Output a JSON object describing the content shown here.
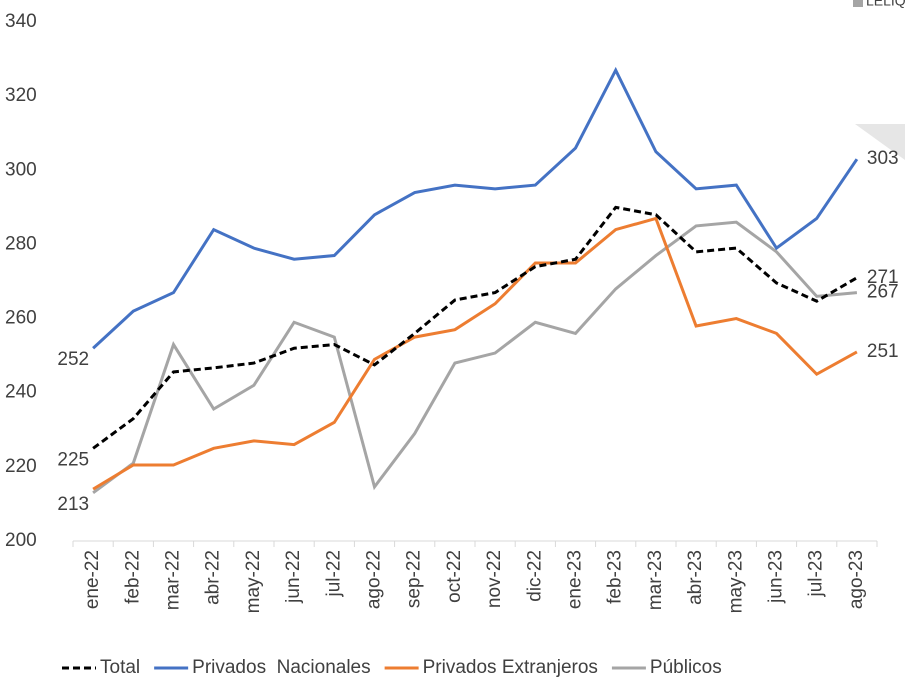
{
  "chart_data": {
    "type": "line",
    "annotations": [
      "LELIQ"
    ],
    "categories": [
      "ene-22",
      "feb-22",
      "mar-22",
      "abr-22",
      "may-22",
      "jun-22",
      "jul-22",
      "ago-22",
      "sep-22",
      "oct-22",
      "nov-22",
      "dic-22",
      "ene-23",
      "feb-23",
      "mar-23",
      "abr-23",
      "may-23",
      "jun-23",
      "jul-23",
      "ago-23"
    ],
    "series": [
      {
        "name": "Total",
        "color": "#000000",
        "dash": true,
        "values": [
          225,
          233,
          245.6,
          246.7,
          248,
          252,
          253,
          247.5,
          256,
          265,
          267,
          274,
          276,
          290,
          288,
          278,
          279,
          269.6,
          264.7,
          271
        ],
        "value_labels": [
          "225",
          null,
          null,
          null,
          null,
          null,
          null,
          null,
          null,
          null,
          null,
          null,
          null,
          null,
          null,
          null,
          null,
          null,
          null,
          "271"
        ]
      },
      {
        "name": "Privados  Nacionales",
        "color": "#4472c4",
        "dash": false,
        "values": [
          252,
          262,
          267,
          284,
          279,
          276,
          277,
          288,
          294,
          296,
          295,
          296,
          306,
          327,
          305,
          295,
          296,
          279,
          287,
          303
        ],
        "value_labels": [
          "252",
          null,
          null,
          null,
          null,
          null,
          null,
          null,
          null,
          null,
          null,
          null,
          null,
          null,
          null,
          null,
          null,
          null,
          null,
          "303"
        ]
      },
      {
        "name": "Privados Extranjeros",
        "color": "#ed7d31",
        "dash": false,
        "values": [
          214,
          220.5,
          220.5,
          225,
          227,
          226,
          232,
          249,
          255,
          257,
          264,
          275,
          275,
          284,
          287,
          258,
          260,
          256,
          245,
          251
        ],
        "value_labels": [
          null,
          null,
          null,
          null,
          null,
          null,
          null,
          null,
          null,
          null,
          null,
          null,
          null,
          null,
          null,
          null,
          null,
          null,
          null,
          "251"
        ]
      },
      {
        "name": "Públicos",
        "color": "#a5a5a5",
        "dash": false,
        "values": [
          213,
          221,
          253,
          235.6,
          242,
          259,
          255,
          214.6,
          229,
          248,
          250.7,
          259,
          256,
          268,
          277,
          285,
          286,
          278,
          266,
          267
        ],
        "value_labels": [
          "213",
          null,
          null,
          null,
          null,
          null,
          null,
          null,
          null,
          null,
          null,
          null,
          null,
          null,
          null,
          null,
          null,
          null,
          null,
          "267"
        ]
      }
    ],
    "ylim": [
      200,
      340
    ],
    "yticks": [
      200,
      220,
      240,
      260,
      280,
      300,
      320,
      340
    ],
    "grid": false,
    "legend": "bottom"
  }
}
